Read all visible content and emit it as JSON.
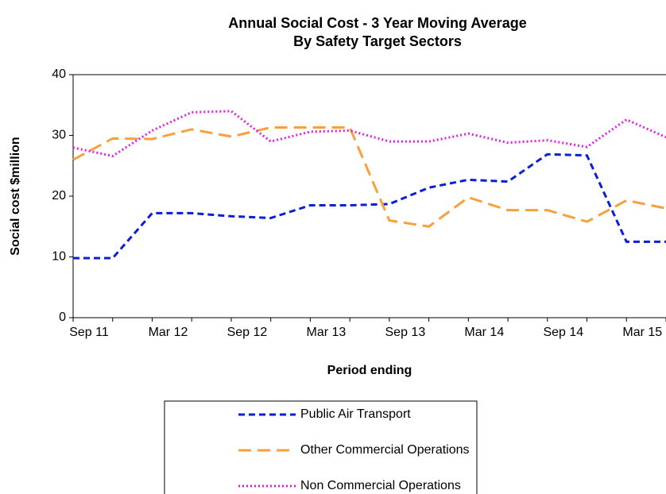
{
  "chart_data": {
    "type": "line",
    "title": "Annual Social Cost - 3 Year Moving Average",
    "subtitle": "By Safety Target Sectors",
    "x_label": "Period ending",
    "y_label": "Social cost  $million",
    "categories": [
      "Sep 11",
      null,
      "Mar 12",
      null,
      "Sep 12",
      null,
      "Mar 13",
      null,
      "Sep 13",
      null,
      "Mar 14",
      null,
      "Sep 14",
      null,
      "Mar 15",
      null
    ],
    "series": [
      {
        "name": "Public Air Transport",
        "color": "#0a1fd6",
        "dash": "8,5",
        "values": [
          9.8,
          9.8,
          17.2,
          17.2,
          16.7,
          16.4,
          18.5,
          18.5,
          18.7,
          21.4,
          22.7,
          22.4,
          26.9,
          26.7,
          12.5,
          12.5
        ]
      },
      {
        "name": "Other Commercial Operations",
        "color": "#f7a03c",
        "dash": "16,8",
        "values": [
          26,
          29.5,
          29.4,
          31,
          29.8,
          31.3,
          31.3,
          31.3,
          16,
          15,
          19.8,
          17.7,
          17.7,
          15.8,
          19.3,
          18
        ]
      },
      {
        "name": "Non Commercial Operations",
        "color": "#e61ee6",
        "dash": "2,3",
        "values": [
          28,
          26.6,
          30.8,
          33.8,
          34,
          29,
          30.6,
          30.8,
          29,
          29,
          30.3,
          28.8,
          29.2,
          28.1,
          32.6,
          29.7
        ]
      }
    ],
    "ylim": [
      0,
      40
    ],
    "yticks": [
      0,
      10,
      20,
      30,
      40
    ]
  }
}
